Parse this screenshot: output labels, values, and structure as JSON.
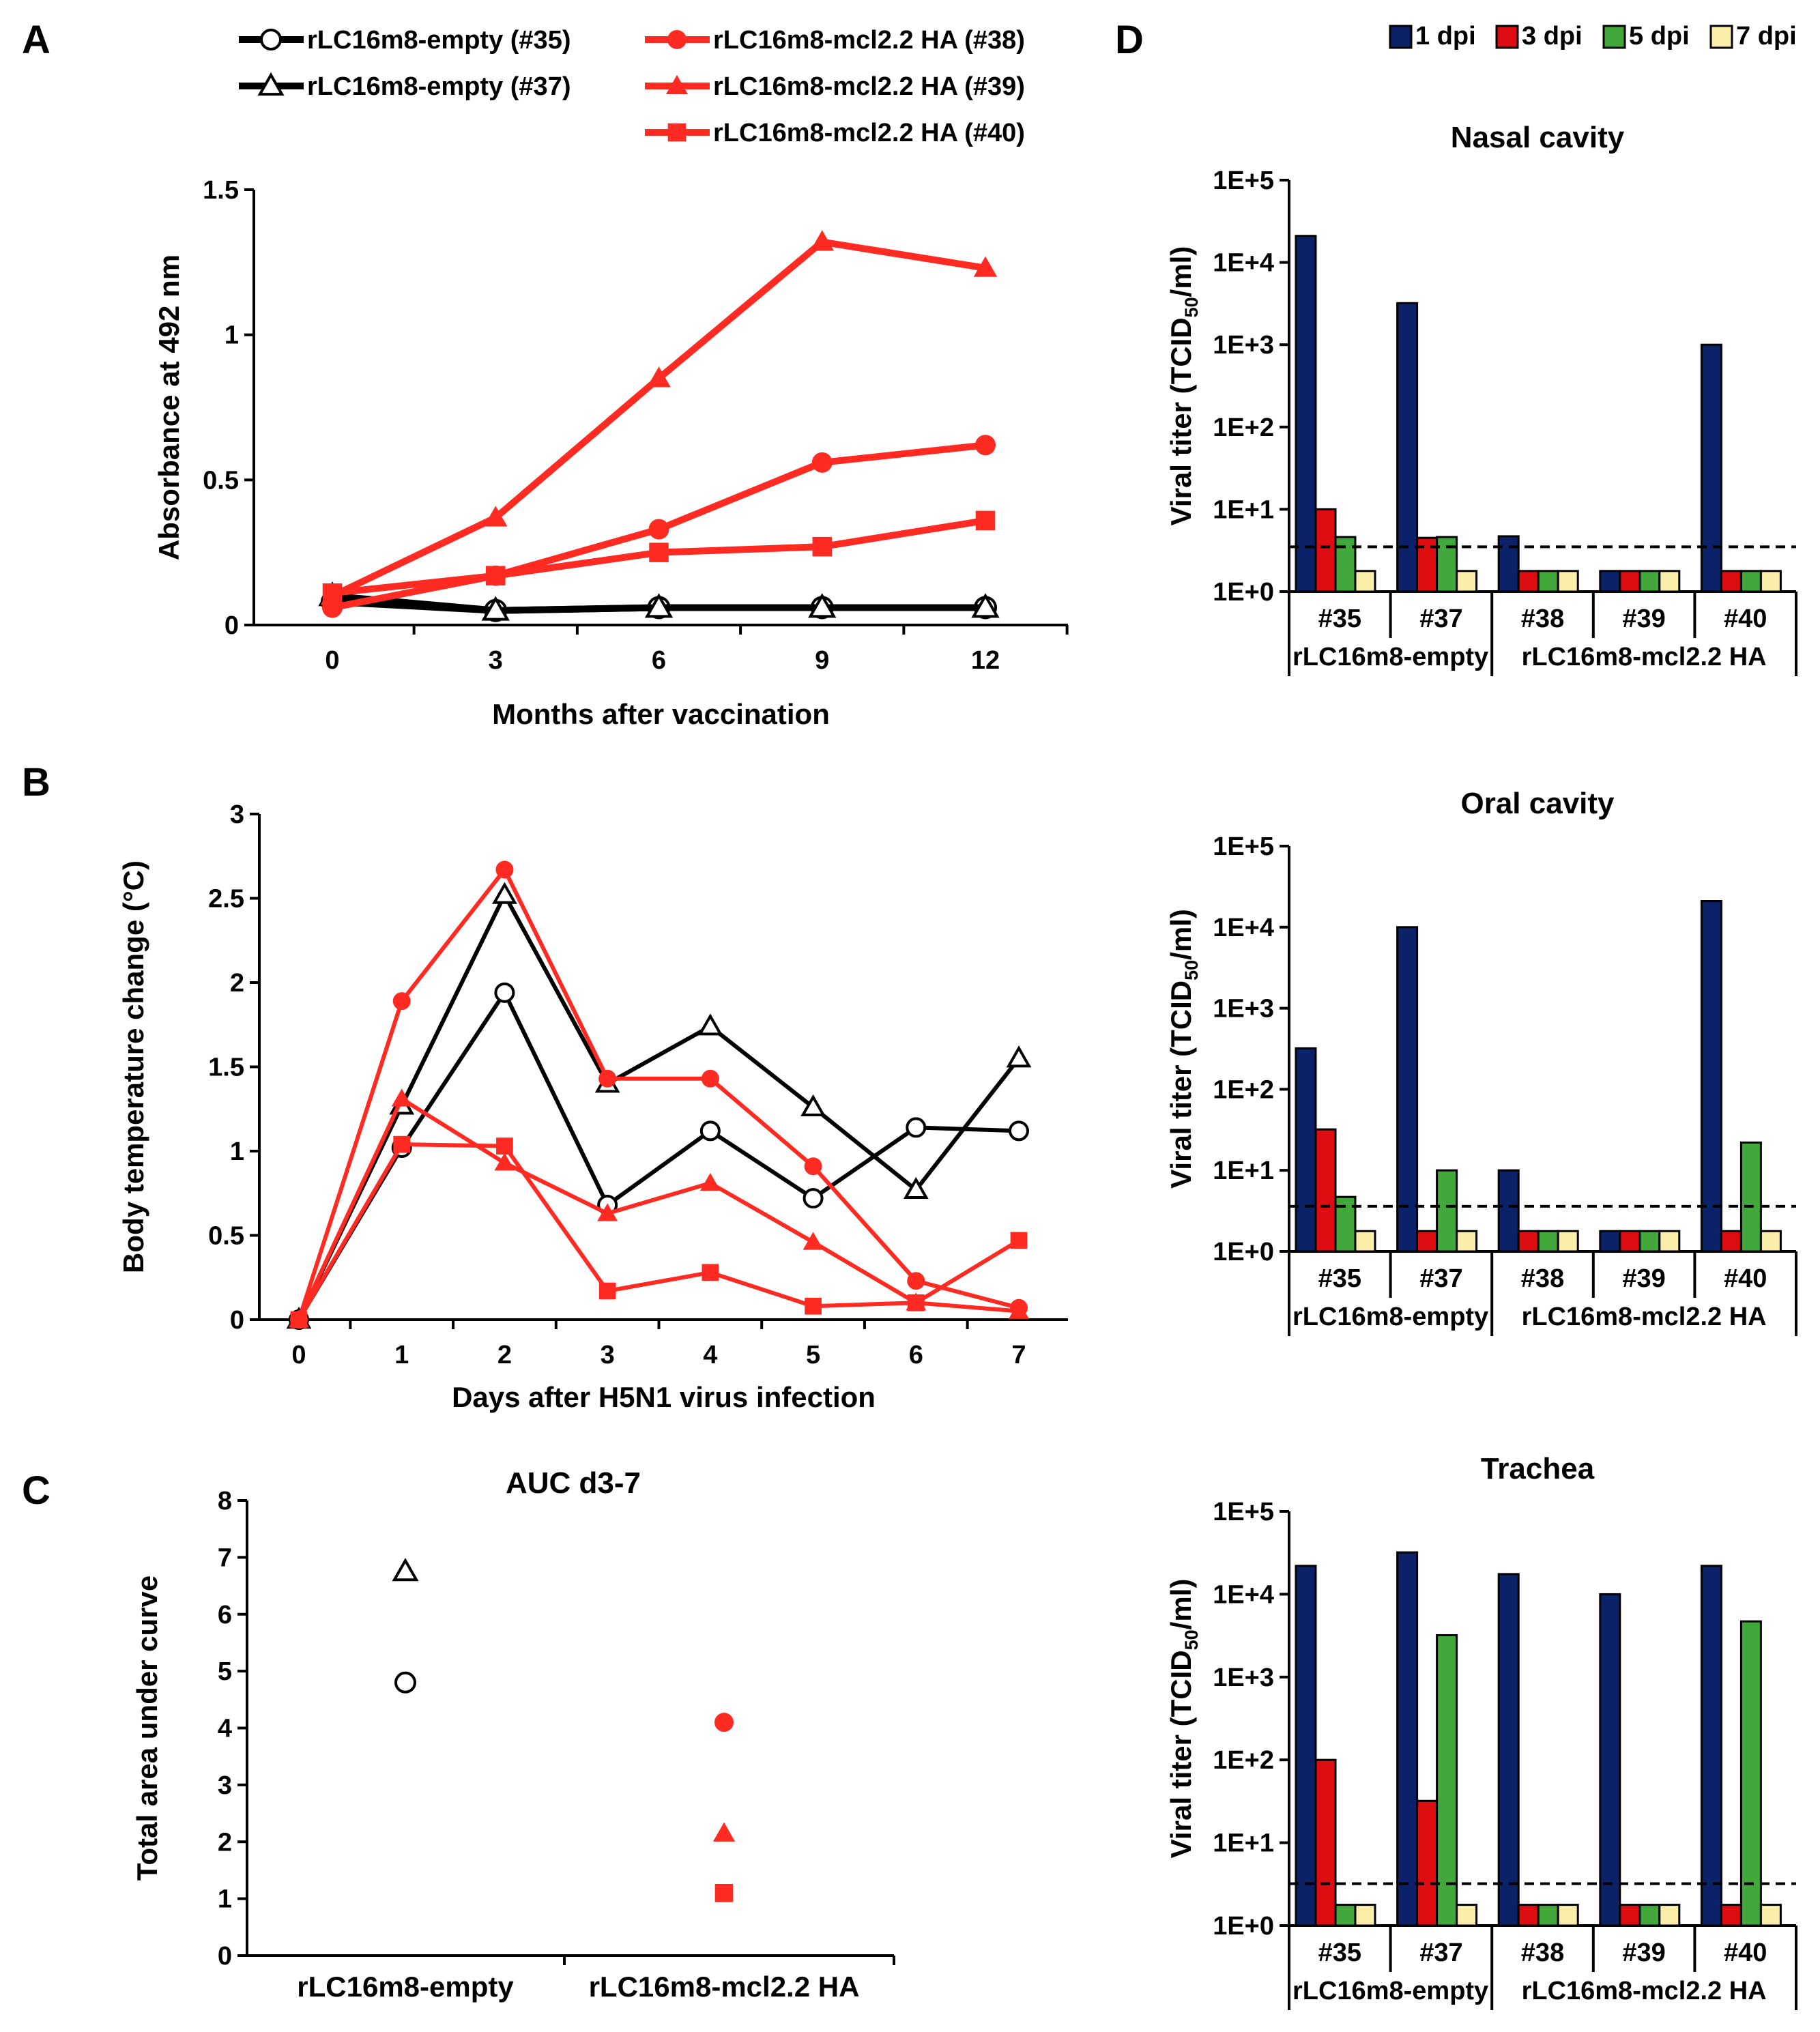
{
  "colors": {
    "black": "#000000",
    "red": "#ff2a22",
    "navy": "#0c2268",
    "darkred": "#dd0d12",
    "green": "#42a83c",
    "cream": "#fbeeaa"
  },
  "panels": {
    "A": {
      "label": "A"
    },
    "B": {
      "label": "B"
    },
    "C": {
      "label": "C"
    },
    "D": {
      "label": "D"
    }
  },
  "legendA": [
    {
      "text": "rLC16m8-empty (#35)",
      "color": "black",
      "marker": "open-circle"
    },
    {
      "text": "rLC16m8-empty (#37)",
      "color": "black",
      "marker": "open-triangle"
    },
    {
      "text": "rLC16m8-mcl2.2 HA (#38)",
      "color": "red",
      "marker": "filled-circle"
    },
    {
      "text": "rLC16m8-mcl2.2 HA (#39)",
      "color": "red",
      "marker": "filled-triangle"
    },
    {
      "text": "rLC16m8-mcl2.2 HA (#40)",
      "color": "red",
      "marker": "filled-square"
    }
  ],
  "legendD": [
    {
      "text": "1 dpi",
      "color": "navy"
    },
    {
      "text": "3 dpi",
      "color": "darkred"
    },
    {
      "text": "5 dpi",
      "color": "green"
    },
    {
      "text": "7 dpi",
      "color": "cream"
    }
  ],
  "chart_data": [
    {
      "panel": "A",
      "type": "line",
      "title": "",
      "xlabel": "Months after vaccination",
      "ylabel": "Absorbance at 492 nm",
      "x": [
        0,
        3,
        6,
        9,
        12
      ],
      "xticks": [
        "0",
        "3",
        "6",
        "9",
        "12"
      ],
      "ylim": [
        0,
        1.5
      ],
      "yticks": [
        "0",
        "0.5",
        "1",
        "1.5"
      ],
      "series": [
        {
          "name": "rLC16m8-empty (#35)",
          "color": "black",
          "marker": "open-circle",
          "values": [
            0.08,
            0.05,
            0.06,
            0.06,
            0.06
          ]
        },
        {
          "name": "rLC16m8-empty (#37)",
          "color": "black",
          "marker": "open-triangle",
          "values": [
            0.1,
            0.05,
            0.06,
            0.06,
            0.06
          ]
        },
        {
          "name": "rLC16m8-mcl2.2 HA (#38)",
          "color": "red",
          "marker": "filled-circle",
          "values": [
            0.06,
            0.17,
            0.33,
            0.56,
            0.62
          ]
        },
        {
          "name": "rLC16m8-mcl2.2 HA (#39)",
          "color": "red",
          "marker": "filled-triangle",
          "values": [
            0.1,
            0.37,
            0.85,
            1.32,
            1.23
          ]
        },
        {
          "name": "rLC16m8-mcl2.2 HA (#40)",
          "color": "red",
          "marker": "filled-square",
          "values": [
            0.11,
            0.17,
            0.25,
            0.27,
            0.36
          ]
        }
      ]
    },
    {
      "panel": "B",
      "type": "line",
      "title": "",
      "xlabel": "Days after H5N1 virus infection",
      "ylabel": "Body temperature change (°C)",
      "x": [
        0,
        1,
        2,
        3,
        4,
        5,
        6,
        7
      ],
      "xticks": [
        "0",
        "1",
        "2",
        "3",
        "4",
        "5",
        "6",
        "7"
      ],
      "ylim": [
        0,
        3
      ],
      "yticks": [
        "0",
        "0.5",
        "1",
        "1.5",
        "2",
        "2.5",
        "3"
      ],
      "series": [
        {
          "name": "rLC16m8-empty (#35)",
          "color": "black",
          "marker": "open-circle",
          "values": [
            0,
            1.02,
            1.94,
            0.68,
            1.12,
            0.72,
            1.14,
            1.12
          ]
        },
        {
          "name": "rLC16m8-empty (#37)",
          "color": "black",
          "marker": "open-triangle",
          "values": [
            0,
            1.27,
            2.52,
            1.4,
            1.74,
            1.26,
            0.77,
            1.55
          ]
        },
        {
          "name": "rLC16m8-mcl2.2 HA (#38)",
          "color": "red",
          "marker": "filled-circle",
          "values": [
            0,
            1.89,
            2.67,
            1.43,
            1.43,
            0.91,
            0.23,
            0.07
          ]
        },
        {
          "name": "rLC16m8-mcl2.2 HA (#39)",
          "color": "red",
          "marker": "filled-triangle",
          "values": [
            0,
            1.31,
            0.93,
            0.63,
            0.81,
            0.46,
            0.1,
            0.05
          ]
        },
        {
          "name": "rLC16m8-mcl2.2 HA (#40)",
          "color": "red",
          "marker": "filled-square",
          "values": [
            0,
            1.04,
            1.03,
            0.17,
            0.28,
            0.08,
            0.1,
            0.47
          ]
        }
      ]
    },
    {
      "panel": "C",
      "type": "scatter",
      "title": "AUC d3-7",
      "xlabel": "",
      "ylabel": "Total area under curve",
      "categories": [
        "rLC16m8-empty",
        "rLC16m8-mcl2.2 HA"
      ],
      "ylim": [
        0,
        8
      ],
      "yticks": [
        "0",
        "1",
        "2",
        "3",
        "4",
        "5",
        "6",
        "7",
        "8"
      ],
      "points": [
        {
          "name": "#35",
          "category": 0,
          "value": 4.8,
          "color": "black",
          "marker": "open-circle"
        },
        {
          "name": "#37",
          "category": 0,
          "value": 6.75,
          "color": "black",
          "marker": "open-triangle"
        },
        {
          "name": "#38",
          "category": 1,
          "value": 4.1,
          "color": "red",
          "marker": "filled-circle"
        },
        {
          "name": "#39",
          "category": 1,
          "value": 2.15,
          "color": "red",
          "marker": "filled-triangle"
        },
        {
          "name": "#40",
          "category": 1,
          "value": 1.1,
          "color": "red",
          "marker": "filled-square"
        }
      ]
    },
    {
      "panel": "D",
      "type": "bar",
      "title": "Nasal cavity",
      "ylabel_main": "Viral titer (TCID",
      "ylabel_sub": "50",
      "ylabel_end": "/ml)",
      "scale": "log",
      "ylim": [
        1,
        100000
      ],
      "yticks": [
        "1E+0",
        "1E+1",
        "1E+2",
        "1E+3",
        "1E+4",
        "1E+5"
      ],
      "detection_limit": 3.5,
      "categories": [
        "#35",
        "#37",
        "#38",
        "#39",
        "#40"
      ],
      "groups": [
        {
          "label": "rLC16m8-empty",
          "span": [
            0,
            1
          ]
        },
        {
          "label": "rLC16m8-mcl2.2 HA",
          "span": [
            2,
            4
          ]
        }
      ],
      "series": [
        {
          "name": "1 dpi",
          "color": "navy",
          "values": [
            21000,
            3200,
            4.7,
            1.78,
            1000
          ]
        },
        {
          "name": "3 dpi",
          "color": "darkred",
          "values": [
            10,
            4.5,
            1.78,
            1.78,
            1.78
          ]
        },
        {
          "name": "5 dpi",
          "color": "green",
          "values": [
            4.6,
            4.6,
            1.78,
            1.78,
            1.78
          ]
        },
        {
          "name": "7 dpi",
          "color": "cream",
          "values": [
            1.78,
            1.78,
            1.78,
            1.78,
            1.78
          ]
        }
      ]
    },
    {
      "panel": "D",
      "type": "bar",
      "title": "Oral cavity",
      "ylabel_main": "Viral titer (TCID",
      "ylabel_sub": "50",
      "ylabel_end": "/ml)",
      "scale": "log",
      "ylim": [
        1,
        100000
      ],
      "yticks": [
        "1E+0",
        "1E+1",
        "1E+2",
        "1E+3",
        "1E+4",
        "1E+5"
      ],
      "detection_limit": 3.6,
      "categories": [
        "#35",
        "#37",
        "#38",
        "#39",
        "#40"
      ],
      "groups": [
        {
          "label": "rLC16m8-empty",
          "span": [
            0,
            1
          ]
        },
        {
          "label": "rLC16m8-mcl2.2 HA",
          "span": [
            2,
            4
          ]
        }
      ],
      "series": [
        {
          "name": "1 dpi",
          "color": "navy",
          "values": [
            320,
            10000,
            10,
            1.78,
            21000
          ]
        },
        {
          "name": "3 dpi",
          "color": "darkred",
          "values": [
            32,
            1.78,
            1.78,
            1.78,
            1.78
          ]
        },
        {
          "name": "5 dpi",
          "color": "green",
          "values": [
            4.7,
            10,
            1.78,
            1.78,
            22
          ]
        },
        {
          "name": "7 dpi",
          "color": "cream",
          "values": [
            1.78,
            1.78,
            1.78,
            1.78,
            1.78
          ]
        }
      ]
    },
    {
      "panel": "D",
      "type": "bar",
      "title": "Trachea",
      "ylabel_main": "Viral titer (TCID",
      "ylabel_sub": "50",
      "ylabel_end": "/ml)",
      "scale": "log",
      "ylim": [
        1,
        100000
      ],
      "yticks": [
        "1E+0",
        "1E+1",
        "1E+2",
        "1E+3",
        "1E+4",
        "1E+5"
      ],
      "detection_limit": 3.2,
      "categories": [
        "#35",
        "#37",
        "#38",
        "#39",
        "#40"
      ],
      "groups": [
        {
          "label": "rLC16m8-empty",
          "span": [
            0,
            1
          ]
        },
        {
          "label": "rLC16m8-mcl2.2 HA",
          "span": [
            2,
            4
          ]
        }
      ],
      "series": [
        {
          "name": "1 dpi",
          "color": "navy",
          "values": [
            22000,
            32000,
            17500,
            10000,
            22000
          ]
        },
        {
          "name": "3 dpi",
          "color": "darkred",
          "values": [
            100,
            32,
            1.78,
            1.78,
            1.78
          ]
        },
        {
          "name": "5 dpi",
          "color": "green",
          "values": [
            1.78,
            3200,
            1.78,
            1.78,
            4700
          ]
        },
        {
          "name": "7 dpi",
          "color": "cream",
          "values": [
            1.78,
            1.78,
            1.78,
            1.78,
            1.78
          ]
        }
      ]
    }
  ]
}
